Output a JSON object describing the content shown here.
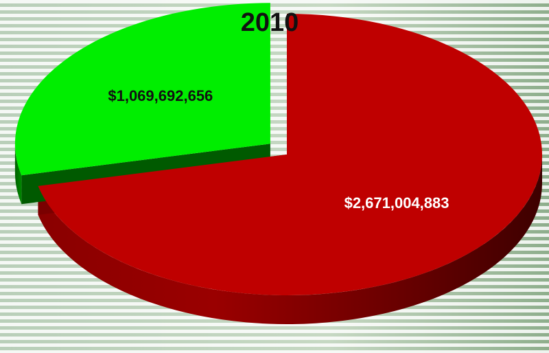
{
  "chart_data": {
    "type": "pie",
    "style": "3d-exploded",
    "title": "2010",
    "slices": [
      {
        "label": "$2,671,004,883",
        "value": 2671004883,
        "color": "#bf0000",
        "label_color": "#ffffff"
      },
      {
        "label": "$1,069,692,656",
        "value": 1069692656,
        "color": "#00ee00",
        "label_color": "#111111"
      }
    ],
    "legend": "none",
    "background": "striped-green"
  }
}
